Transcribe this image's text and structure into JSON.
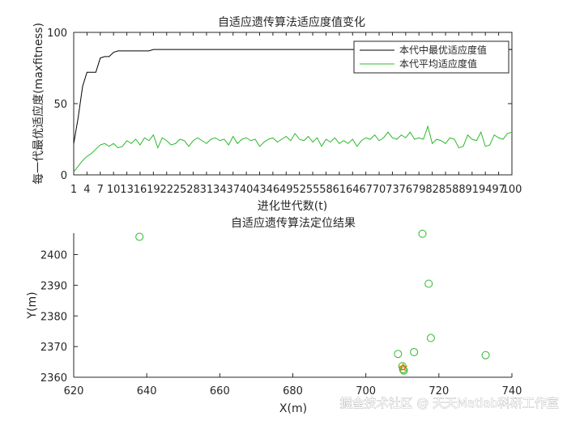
{
  "chart_data": [
    {
      "type": "line",
      "title": "自适应遗传算法适应度值变化",
      "xlabel": "进化世代数(t)",
      "ylabel": "每一代最优适应度(maxfitness)",
      "xlim": [
        1,
        100
      ],
      "ylim": [
        0,
        100
      ],
      "xticks": [
        1,
        4,
        7,
        10,
        13,
        16,
        19,
        22,
        25,
        28,
        31,
        34,
        37,
        40,
        43,
        46,
        49,
        52,
        55,
        58,
        61,
        64,
        67,
        70,
        73,
        76,
        79,
        82,
        85,
        88,
        91,
        94,
        97,
        100
      ],
      "yticks": [
        0,
        50,
        100
      ],
      "grid": false,
      "legend_position": "top-right",
      "series": [
        {
          "name": "本代中最优适应度值",
          "color": "#000000",
          "values": [
            22,
            40,
            62,
            72,
            72,
            72,
            82,
            83,
            83,
            86,
            87,
            87,
            87,
            87,
            87,
            87,
            87,
            87,
            88,
            88,
            88,
            88,
            88,
            88,
            88,
            88,
            88,
            88,
            88,
            88,
            88,
            88,
            88,
            88,
            88,
            88,
            88,
            88,
            88,
            88,
            88,
            88,
            88,
            88,
            88,
            88,
            88,
            88,
            88,
            88,
            88,
            88,
            88,
            88,
            88,
            88,
            88,
            88,
            88,
            88,
            88,
            88,
            88,
            88,
            88,
            88,
            88,
            88,
            88,
            88,
            88,
            88,
            88,
            88,
            88,
            88,
            88,
            88,
            88,
            88,
            88,
            88,
            88,
            88,
            88,
            88,
            88,
            88,
            88,
            88,
            88,
            88,
            88,
            88,
            88,
            88,
            88,
            88,
            88,
            88
          ]
        },
        {
          "name": "本代平均适应度值",
          "color": "#2db82d",
          "values": [
            2,
            6,
            10,
            13,
            15,
            18,
            21,
            22,
            20,
            22,
            19,
            20,
            24,
            22,
            25,
            21,
            26,
            24,
            28,
            19,
            26,
            24,
            21,
            22,
            25,
            24,
            20,
            24,
            26,
            24,
            22,
            25,
            26,
            24,
            25,
            21,
            27,
            22,
            25,
            26,
            24,
            25,
            20,
            23,
            25,
            26,
            23,
            25,
            27,
            24,
            29,
            25,
            24,
            27,
            23,
            26,
            20,
            25,
            23,
            26,
            22,
            24,
            22,
            25,
            20,
            24,
            26,
            25,
            28,
            24,
            26,
            30,
            26,
            25,
            28,
            26,
            30,
            25,
            26,
            25,
            34,
            22,
            25,
            24,
            22,
            26,
            25,
            19,
            20,
            28,
            25,
            24,
            30,
            20,
            21,
            28,
            26,
            25,
            29,
            30
          ]
        }
      ]
    },
    {
      "type": "scatter",
      "title": "自适应遗传算法定位结果",
      "xlabel": "X(m)",
      "ylabel": "Y(m)",
      "xlim": [
        620,
        740
      ],
      "ylim": [
        2360,
        2407
      ],
      "xticks": [
        620,
        640,
        660,
        680,
        700,
        720,
        740
      ],
      "yticks": [
        2360,
        2370,
        2380,
        2390,
        2400
      ],
      "grid": false,
      "series": [
        {
          "marker": "circle",
          "color": "#2db82d",
          "points": [
            [
              638,
              2405.8
            ],
            [
              715.5,
              2406.8
            ],
            [
              717.2,
              2390.5
            ],
            [
              717.8,
              2372.8
            ],
            [
              713.2,
              2368.2
            ],
            [
              708.8,
              2367.6
            ],
            [
              732.8,
              2367.2
            ],
            [
              710,
              2363.6
            ],
            [
              710.2,
              2362.6
            ],
            [
              710.4,
              2362.2
            ]
          ]
        },
        {
          "marker": "star",
          "color": "#e0a000",
          "points": [
            [
              710.2,
              2363.2
            ]
          ]
        },
        {
          "marker": "circle-small",
          "color": "#d94030",
          "points": [
            [
              710.2,
              2363.2
            ]
          ]
        }
      ]
    }
  ],
  "watermark": "掘金技术社区 @ 天天Matlab科研工作室"
}
